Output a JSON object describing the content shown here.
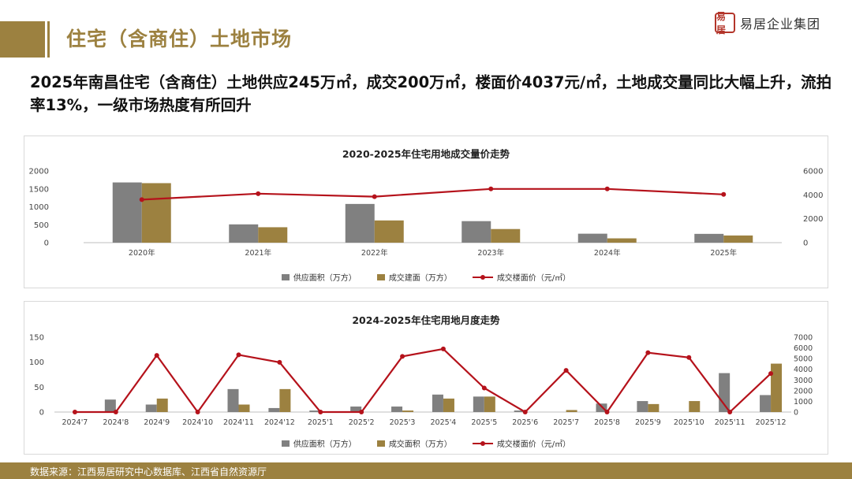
{
  "page": {
    "title": "住宅（含商住）土地市场",
    "logo_seal": "易居",
    "logo_text": "易居企业集团",
    "headline": "2025年南昌住宅（含商住）土地供应245万㎡，成交200万㎡，楼面价4037元/㎡，土地成交量同比大幅上升，流拍率13%，一级市场热度有所回升",
    "footer": "数据来源：江西易居研究中心数据库、江西省自然资源厅",
    "colors": {
      "gold": "#9c8140",
      "supply": "#808080",
      "deal": "#9c8140",
      "price_line": "#b5121b",
      "seal": "#b3352a"
    }
  },
  "chart_data": [
    {
      "type": "bar",
      "title": "2020-2025年住宅用地成交量价走势",
      "categories": [
        "2020年",
        "2021年",
        "2022年",
        "2023年",
        "2024年",
        "2025年"
      ],
      "series": [
        {
          "name": "供应面积（万方）",
          "kind": "bar",
          "axis": "left",
          "color": "#808080",
          "values": [
            1680,
            510,
            1080,
            600,
            250,
            245
          ]
        },
        {
          "name": "成交建面（万方）",
          "kind": "bar",
          "axis": "left",
          "color": "#9c8140",
          "values": [
            1660,
            430,
            620,
            380,
            120,
            200
          ]
        },
        {
          "name": "成交楼面价（元/㎡）",
          "kind": "line",
          "axis": "right",
          "color": "#b5121b",
          "values": [
            3600,
            4100,
            3850,
            4500,
            4500,
            4037
          ]
        }
      ],
      "ylim_left": [
        0,
        2000
      ],
      "yticks_left": [
        "0",
        "500",
        "1000",
        "1500",
        "2000"
      ],
      "ylim_right": [
        0,
        6000
      ],
      "yticks_right": [
        "0",
        "2000",
        "4000",
        "6000"
      ],
      "grid": false,
      "legend": "bottom"
    },
    {
      "type": "bar",
      "title": "2024-2025年住宅用地月度走势",
      "categories": [
        "2024'7",
        "2024'8",
        "2024'9",
        "2024'10",
        "2024'11",
        "2024'12",
        "2025'1",
        "2025'2",
        "2025'3",
        "2025'4",
        "2025'5",
        "2025'6",
        "2025'7",
        "2025'8",
        "2025'9",
        "2025'10",
        "2025'11",
        "2025'12"
      ],
      "series": [
        {
          "name": "供应面积（万方）",
          "kind": "bar",
          "axis": "left",
          "color": "#808080",
          "values": [
            0,
            25,
            15,
            0,
            46,
            8,
            3,
            11,
            11,
            35,
            31,
            3,
            0,
            17,
            22,
            0,
            78,
            34
          ]
        },
        {
          "name": "成交面积（万方）",
          "kind": "bar",
          "axis": "left",
          "color": "#9c8140",
          "values": [
            0,
            0,
            27,
            0,
            15,
            46,
            0,
            0,
            3,
            27,
            31,
            0,
            4,
            0,
            16,
            22,
            0,
            97
          ]
        },
        {
          "name": "成交楼面价（元/㎡）",
          "kind": "line",
          "axis": "right",
          "color": "#b5121b",
          "values": [
            0,
            0,
            5300,
            0,
            5350,
            4650,
            0,
            0,
            5200,
            5900,
            2250,
            0,
            3900,
            0,
            5550,
            5100,
            0,
            3600
          ]
        }
      ],
      "ylim_left": [
        0,
        150
      ],
      "yticks_left": [
        "0",
        "50",
        "100",
        "150"
      ],
      "ylim_right": [
        0,
        7000
      ],
      "yticks_right": [
        "0",
        "1000",
        "2000",
        "3000",
        "4000",
        "5000",
        "6000",
        "7000"
      ],
      "grid": false,
      "legend": "bottom"
    }
  ]
}
